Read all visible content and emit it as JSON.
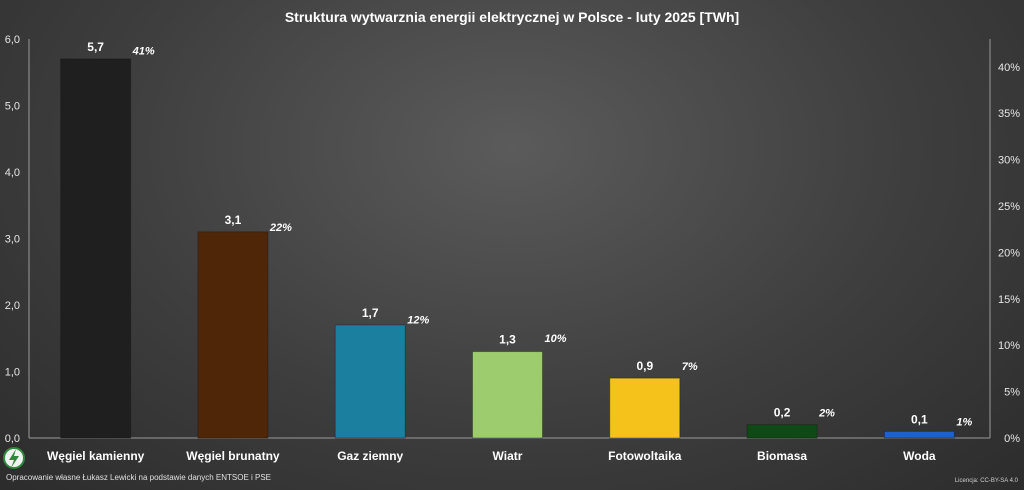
{
  "chart_data": {
    "type": "bar",
    "title": "Struktura wytwarznia energii elektrycznej w Polsce - luty 2025 [TWh]",
    "categories": [
      "Węgiel kamienny",
      "Węgiel brunatny",
      "Gaz ziemny",
      "Wiatr",
      "Fotowoltaika",
      "Biomasa",
      "Woda"
    ],
    "values": [
      5.7,
      3.1,
      1.7,
      1.3,
      0.9,
      0.2,
      0.1
    ],
    "value_labels": [
      "5,7",
      "3,1",
      "1,7",
      "1,3",
      "0,9",
      "0,2",
      "0,1"
    ],
    "percent_labels": [
      "41%",
      "22%",
      "12%",
      "10%",
      "7%",
      "2%",
      "1%"
    ],
    "percent_values": [
      41,
      22,
      12,
      10,
      7,
      2,
      1
    ],
    "colors": [
      "#1f1f1f",
      "#4f2608",
      "#1b7fa0",
      "#9ccc6e",
      "#f5c21c",
      "#0f4a16",
      "#1f5fd0"
    ],
    "ylim": [
      0,
      6
    ],
    "yticks": [
      "0,0",
      "1,0",
      "2,0",
      "3,0",
      "4,0",
      "5,0",
      "6,0"
    ],
    "y2lim": [
      0,
      43
    ],
    "y2ticks": [
      "0%",
      "5%",
      "10%",
      "15%",
      "20%",
      "25%",
      "30%",
      "35%",
      "40%"
    ],
    "grid": false,
    "legend": "none"
  },
  "footer": {
    "source": "Opracowanie własne Łukasz Lewicki na podstawie danych ENTSOE i PSE",
    "license": "Licencja: CC-BY-SA 4.0"
  }
}
